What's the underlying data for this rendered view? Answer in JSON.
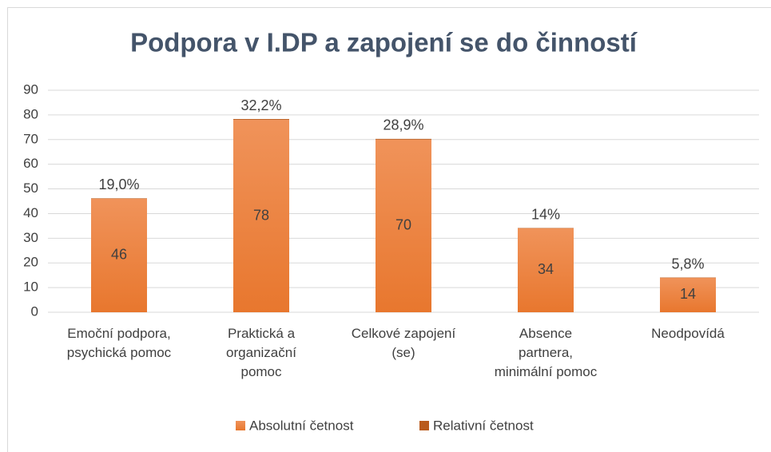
{
  "chart_data": {
    "type": "bar",
    "stacked": true,
    "title": "Podpora v I.DP a zapojení se do činností",
    "categories": [
      "Emoční podpora, psychická pomoc",
      "Praktická a organizační pomoc",
      "Celkové zapojení (se)",
      "Absence partnera, minimální pomoc",
      "Neodpovídá"
    ],
    "series": [
      {
        "name": "Absolutní četnost",
        "color": "#e8772e",
        "values": [
          46,
          78,
          70,
          34,
          14
        ]
      },
      {
        "name": "Relativní četnost",
        "color": "#b95a1c",
        "values": [
          0.19,
          0.322,
          0.289,
          0.14,
          0.058
        ],
        "value_labels": [
          "19,0%",
          "32,2%",
          "28,9%",
          "14%",
          "5,8%"
        ]
      }
    ],
    "ylim": [
      0,
      90
    ],
    "yticks": [
      0,
      10,
      20,
      30,
      40,
      50,
      60,
      70,
      80,
      90
    ],
    "grid": true,
    "legend": "bottom"
  }
}
